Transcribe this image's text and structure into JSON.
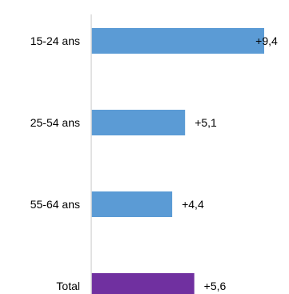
{
  "chart_data": {
    "type": "bar",
    "orientation": "horizontal",
    "categories": [
      "15-24 ans",
      "25-54 ans",
      "55-64 ans",
      "Total"
    ],
    "values": [
      9.4,
      5.1,
      4.4,
      5.6
    ],
    "value_labels": [
      "+9,4",
      "+5,1",
      "+4,4",
      "+5,6"
    ],
    "bar_colors": [
      "#5b9bd5",
      "#5b9bd5",
      "#5b9bd5",
      "#7030a0"
    ],
    "axis_color": "#d9d9d9",
    "title": "",
    "xlabel": "",
    "ylabel": "",
    "xlim": [
      0,
      9.4
    ],
    "grid": false,
    "legend": "none"
  }
}
